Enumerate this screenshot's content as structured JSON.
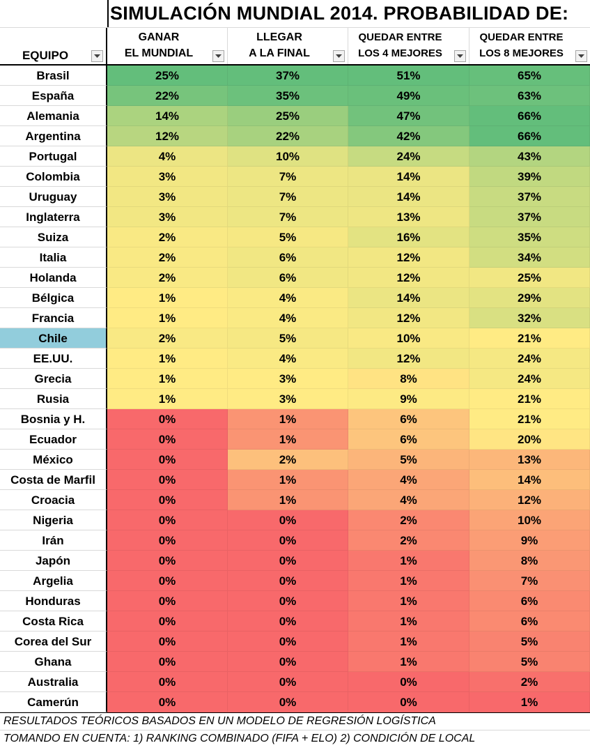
{
  "title": "SIMULACIÓN MUNDIAL 2014. PROBABILIDAD DE:",
  "headers": {
    "team": "EQUIPO",
    "win_1": "GANAR",
    "win_2": "EL MUNDIAL",
    "final_1": "LLEGAR",
    "final_2": "A LA FINAL",
    "top4_1": "QUEDAR ENTRE",
    "top4_2": "LOS 4 MEJORES",
    "top8_1": "QUEDAR ENTRE",
    "top8_2": "LOS 8 MEJORES"
  },
  "highlight_team": "Chile",
  "highlight_color": "#92cddc",
  "rows": [
    [
      "Brasil",
      "25%",
      "37%",
      "51%",
      "65%"
    ],
    [
      "España",
      "22%",
      "35%",
      "49%",
      "63%"
    ],
    [
      "Alemania",
      "14%",
      "25%",
      "47%",
      "66%"
    ],
    [
      "Argentina",
      "12%",
      "22%",
      "42%",
      "66%"
    ],
    [
      "Portugal",
      "4%",
      "10%",
      "24%",
      "43%"
    ],
    [
      "Colombia",
      "3%",
      "7%",
      "14%",
      "39%"
    ],
    [
      "Uruguay",
      "3%",
      "7%",
      "14%",
      "37%"
    ],
    [
      "Inglaterra",
      "3%",
      "7%",
      "13%",
      "37%"
    ],
    [
      "Suiza",
      "2%",
      "5%",
      "16%",
      "35%"
    ],
    [
      "Italia",
      "2%",
      "6%",
      "12%",
      "34%"
    ],
    [
      "Holanda",
      "2%",
      "6%",
      "12%",
      "25%"
    ],
    [
      "Bélgica",
      "1%",
      "4%",
      "14%",
      "29%"
    ],
    [
      "Francia",
      "1%",
      "4%",
      "12%",
      "32%"
    ],
    [
      "Chile",
      "2%",
      "5%",
      "10%",
      "21%"
    ],
    [
      "EE.UU.",
      "1%",
      "4%",
      "12%",
      "24%"
    ],
    [
      "Grecia",
      "1%",
      "3%",
      "8%",
      "24%"
    ],
    [
      "Rusia",
      "1%",
      "3%",
      "9%",
      "21%"
    ],
    [
      "Bosnia y H.",
      "0%",
      "1%",
      "6%",
      "21%"
    ],
    [
      "Ecuador",
      "0%",
      "1%",
      "6%",
      "20%"
    ],
    [
      "México",
      "0%",
      "2%",
      "5%",
      "13%"
    ],
    [
      "Costa de Marfil",
      "0%",
      "1%",
      "4%",
      "14%"
    ],
    [
      "Croacia",
      "0%",
      "1%",
      "4%",
      "12%"
    ],
    [
      "Nigeria",
      "0%",
      "0%",
      "2%",
      "10%"
    ],
    [
      "Irán",
      "0%",
      "0%",
      "2%",
      "9%"
    ],
    [
      "Japón",
      "0%",
      "0%",
      "1%",
      "8%"
    ],
    [
      "Argelia",
      "0%",
      "0%",
      "1%",
      "7%"
    ],
    [
      "Honduras",
      "0%",
      "0%",
      "1%",
      "6%"
    ],
    [
      "Costa Rica",
      "0%",
      "0%",
      "1%",
      "6%"
    ],
    [
      "Corea del Sur",
      "0%",
      "0%",
      "1%",
      "5%"
    ],
    [
      "Ghana",
      "0%",
      "0%",
      "1%",
      "5%"
    ],
    [
      "Australia",
      "0%",
      "0%",
      "0%",
      "2%"
    ],
    [
      "Camerún",
      "0%",
      "0%",
      "0%",
      "1%"
    ]
  ],
  "footer": {
    "line1": "RESULTADOS TEÓRICOS BASADOS EN UN MODELO DE REGRESIÓN LOGÍSTICA",
    "line2": "TOMANDO EN CUENTA: 1) RANKING COMBINADO (FIFA + ELO)  2) CONDICIÓN DE LOCAL"
  }
}
